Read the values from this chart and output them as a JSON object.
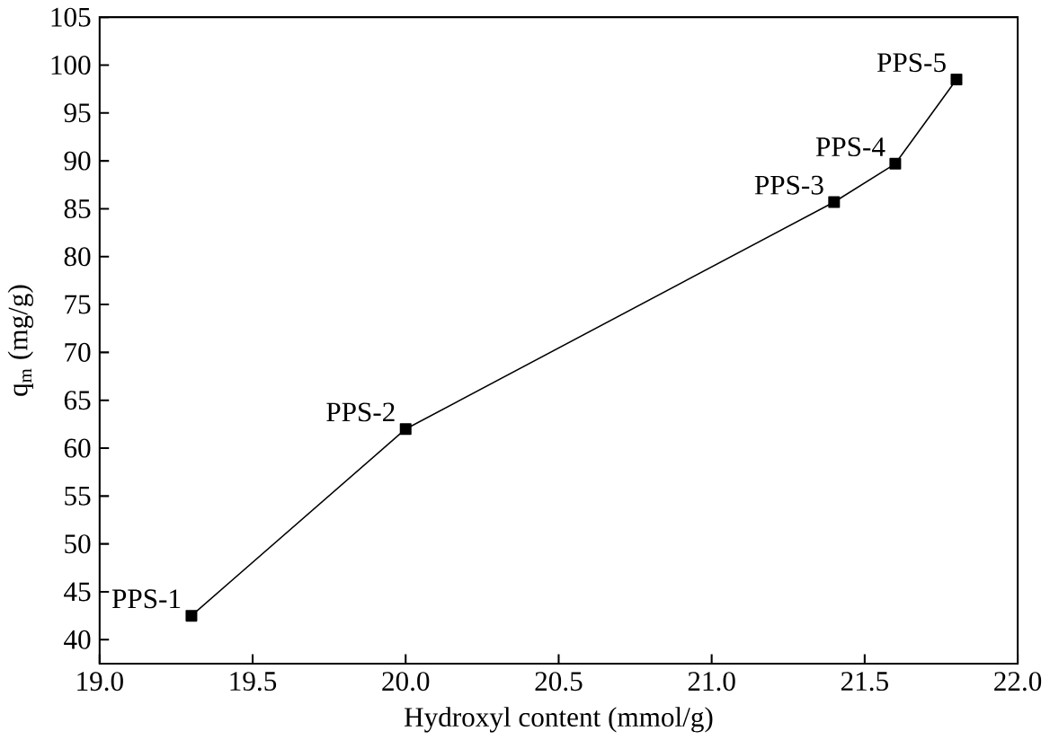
{
  "chart_data": {
    "type": "line",
    "xlabel": "Hydroxyl content (mmol/g)",
    "ylabel": "q$_{m}$ (mg/g)",
    "x": [
      19.3,
      20.0,
      21.4,
      21.6,
      21.8
    ],
    "series": [
      {
        "color": "#000000",
        "values": [
          42.5,
          62,
          85.7,
          89.7,
          98.5
        ]
      }
    ],
    "marker": "square",
    "line_style": "solid",
    "xlim": [
      19.0,
      22.0
    ],
    "ylim": [
      37.5,
      105
    ],
    "xticks": [
      {
        "value": 19.0,
        "label": "19.0"
      },
      19.5,
      {
        "value": 20.0,
        "label": "20.0"
      },
      20.5,
      {
        "value": 21.0,
        "label": "21.0"
      },
      21.5,
      {
        "value": 22.0,
        "label": "22.0"
      }
    ],
    "yticks": [
      40,
      45,
      50,
      55,
      60,
      65,
      70,
      75,
      80,
      85,
      90,
      95,
      100,
      105
    ],
    "annotations": [
      {
        "text": "PPS-1",
        "x": 19.3,
        "y": 42.5
      },
      {
        "text": "PPS-2",
        "x": 20.0,
        "y": 62
      },
      {
        "text": "PPS-3",
        "x": 21.4,
        "y": 85.7
      },
      {
        "text": "PPS-4",
        "x": 21.6,
        "y": 89.7
      },
      {
        "text": "PPS-5",
        "x": 21.8,
        "y": 98.5
      }
    ]
  }
}
